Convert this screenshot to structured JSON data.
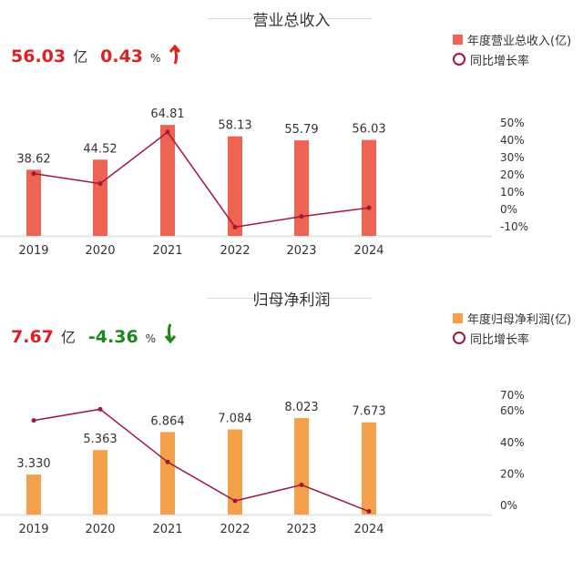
{
  "colors": {
    "revenue_bar": "#ee6352",
    "profit_bar": "#f4a04b",
    "line": "#a0163f",
    "up": "#e02020",
    "down": "#1a8a1a"
  },
  "chart_data": [
    {
      "type": "bar",
      "title": "营业总收入",
      "kpi": {
        "value": "56.03",
        "unit": "亿",
        "change": "0.43",
        "change_unit": "%",
        "direction": "up",
        "arrow_icon": "arrow-up-icon"
      },
      "categories": [
        "2019",
        "2020",
        "2021",
        "2022",
        "2023",
        "2024"
      ],
      "series": [
        {
          "name": "年度营业总收入(亿)",
          "type": "bar",
          "values": [
            38.62,
            44.52,
            64.81,
            58.13,
            55.79,
            56.03
          ],
          "labels": [
            "38.62",
            "44.52",
            "64.81",
            "58.13",
            "55.79",
            "56.03"
          ]
        },
        {
          "name": "同比增长率",
          "type": "line",
          "axis": "right",
          "values": [
            20.2,
            14.4,
            44.2,
            -10.7,
            -4.6,
            0.43
          ]
        }
      ],
      "y2_ticks": [
        "50%",
        "40%",
        "30%",
        "20%",
        "10%",
        "0%",
        "-10%"
      ],
      "y2lim": [
        -10,
        50
      ],
      "legend": "top-right",
      "grid": false
    },
    {
      "type": "bar",
      "title": "归母净利润",
      "kpi": {
        "value": "7.67",
        "unit": "亿",
        "change": "-4.36",
        "change_unit": "%",
        "direction": "down",
        "arrow_icon": "arrow-down-icon"
      },
      "categories": [
        "2019",
        "2020",
        "2021",
        "2022",
        "2023",
        "2024"
      ],
      "series": [
        {
          "name": "年度归母净利润(亿)",
          "type": "bar",
          "values": [
            3.33,
            5.363,
            6.864,
            7.084,
            8.023,
            7.673
          ],
          "labels": [
            "3.330",
            "5.363",
            "6.864",
            "7.084",
            "8.023",
            "7.673"
          ]
        },
        {
          "name": "同比增长率",
          "type": "line",
          "axis": "right",
          "values": [
            53.4,
            60.5,
            27.0,
            2.3,
            12.5,
            -4.36
          ]
        }
      ],
      "y2_ticks": [
        "70%",
        "60%",
        "40%",
        "20%",
        "0%"
      ],
      "y2lim": [
        0,
        70
      ],
      "legend": "top-right",
      "grid": false
    }
  ]
}
